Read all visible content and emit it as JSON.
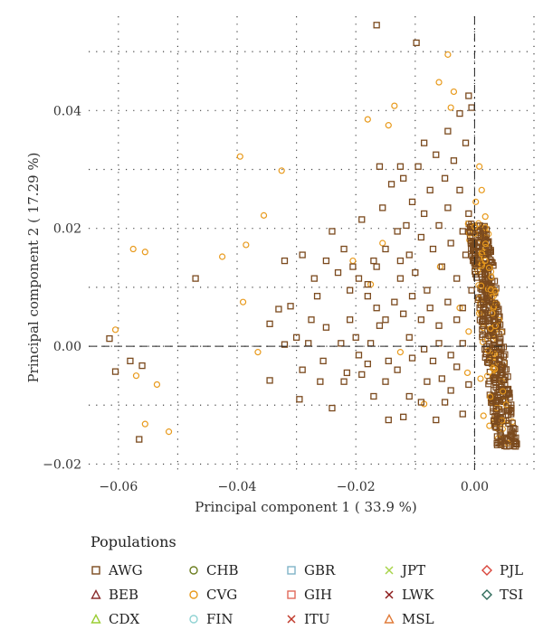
{
  "chart_data": {
    "type": "scatter",
    "xlabel": "Principal component 1 ( 33.9 %)",
    "ylabel": "Principal component 2 ( 17.29 %)",
    "xlim": [
      -0.065,
      0.01
    ],
    "ylim": [
      -0.021,
      0.056
    ],
    "x_ticks": [
      -0.06,
      -0.04,
      -0.02,
      0.0
    ],
    "x_tick_labels": [
      "−0.06",
      "−0.04",
      "−0.02",
      "0.00"
    ],
    "y_ticks": [
      -0.02,
      0.0,
      0.02,
      0.04
    ],
    "y_tick_labels": [
      "−0.02",
      "0.00",
      "0.02",
      "0.04"
    ],
    "grid": "dotted",
    "reference_lines": {
      "x": 0,
      "y": 0
    },
    "legend_title": "Populations",
    "legend": [
      {
        "name": "AWG",
        "shape": "square",
        "color": "#7b4a1e"
      },
      {
        "name": "BEB",
        "shape": "triangle",
        "color": "#8b2e2e"
      },
      {
        "name": "CDX",
        "shape": "triangle",
        "color": "#9acd32"
      },
      {
        "name": "CHB",
        "shape": "circle",
        "color": "#6b7d1f"
      },
      {
        "name": "CVG",
        "shape": "circle",
        "color": "#e89a1c"
      },
      {
        "name": "FIN",
        "shape": "circle",
        "color": "#8fd3d3"
      },
      {
        "name": "GBR",
        "shape": "square",
        "color": "#7fb3c8"
      },
      {
        "name": "GIH",
        "shape": "square",
        "color": "#e06a5a"
      },
      {
        "name": "ITU",
        "shape": "x",
        "color": "#c0392b"
      },
      {
        "name": "JPT",
        "shape": "x",
        "color": "#a8d44a"
      },
      {
        "name": "LWK",
        "shape": "x",
        "color": "#8b1a1a"
      },
      {
        "name": "MSL",
        "shape": "triangle",
        "color": "#e07b39"
      },
      {
        "name": "PJL",
        "shape": "diamond",
        "color": "#d9443a"
      },
      {
        "name": "TSI",
        "shape": "diamond",
        "color": "#2e6b5a"
      }
    ],
    "series": [
      {
        "name": "AWG",
        "points": [
          [
            -0.0615,
            0.0013
          ],
          [
            -0.0605,
            -0.0043
          ],
          [
            -0.058,
            -0.0025
          ],
          [
            -0.056,
            -0.0033
          ],
          [
            -0.0565,
            -0.0158
          ],
          [
            -0.047,
            0.0115
          ],
          [
            -0.0345,
            0.0038
          ],
          [
            -0.033,
            0.0063
          ],
          [
            -0.032,
            0.0003
          ],
          [
            -0.031,
            0.0068
          ],
          [
            -0.03,
            0.0015
          ],
          [
            -0.0295,
            -0.009
          ],
          [
            -0.0345,
            -0.0058
          ],
          [
            -0.029,
            -0.004
          ],
          [
            -0.026,
            -0.006
          ],
          [
            -0.025,
            0.0032
          ],
          [
            -0.028,
            0.0005
          ],
          [
            -0.024,
            -0.0105
          ],
          [
            -0.022,
            -0.006
          ],
          [
            -0.02,
            0.0015
          ],
          [
            -0.019,
            -0.0048
          ],
          [
            -0.018,
            -0.003
          ],
          [
            -0.017,
            -0.0085
          ],
          [
            -0.016,
            0.0035
          ],
          [
            -0.015,
            -0.006
          ],
          [
            -0.0145,
            -0.0125
          ],
          [
            -0.013,
            -0.004
          ],
          [
            -0.012,
            -0.012
          ],
          [
            -0.011,
            -0.0085
          ],
          [
            -0.0105,
            -0.002
          ],
          [
            -0.009,
            -0.0095
          ],
          [
            -0.008,
            -0.006
          ],
          [
            -0.032,
            0.0145
          ],
          [
            -0.029,
            0.0155
          ],
          [
            -0.027,
            0.0115
          ],
          [
            -0.025,
            0.0145
          ],
          [
            -0.024,
            0.0195
          ],
          [
            -0.023,
            0.0125
          ],
          [
            -0.022,
            0.0165
          ],
          [
            -0.021,
            0.0095
          ],
          [
            -0.0195,
            0.0115
          ],
          [
            -0.019,
            0.0215
          ],
          [
            -0.018,
            0.0085
          ],
          [
            -0.017,
            0.0145
          ],
          [
            -0.016,
            0.0305
          ],
          [
            -0.0155,
            0.0235
          ],
          [
            -0.015,
            0.0165
          ],
          [
            -0.014,
            0.0275
          ],
          [
            -0.013,
            0.0195
          ],
          [
            -0.0125,
            0.0115
          ],
          [
            -0.012,
            0.0285
          ],
          [
            -0.0115,
            0.0205
          ],
          [
            -0.011,
            0.0155
          ],
          [
            -0.0105,
            0.0245
          ],
          [
            -0.01,
            0.0125
          ],
          [
            -0.0095,
            0.0305
          ],
          [
            -0.009,
            0.0185
          ],
          [
            -0.0085,
            0.0225
          ],
          [
            -0.008,
            0.0095
          ],
          [
            -0.0075,
            0.0265
          ],
          [
            -0.007,
            0.0165
          ],
          [
            -0.0065,
            0.0325
          ],
          [
            -0.006,
            0.0205
          ],
          [
            -0.0055,
            0.0135
          ],
          [
            -0.005,
            0.0285
          ],
          [
            -0.0045,
            0.0235
          ],
          [
            -0.004,
            0.0175
          ],
          [
            -0.0035,
            0.0315
          ],
          [
            -0.003,
            0.0115
          ],
          [
            -0.0025,
            0.0265
          ],
          [
            -0.002,
            0.0195
          ],
          [
            -0.0015,
            0.0345
          ],
          [
            -0.001,
            0.0225
          ],
          [
            -0.0005,
            0.0405
          ],
          [
            -0.0165,
            0.0545
          ],
          [
            -0.0098,
            0.0515
          ],
          [
            -0.018,
            0.0105
          ],
          [
            -0.0165,
            0.0065
          ],
          [
            -0.015,
            0.0045
          ],
          [
            -0.0135,
            0.0075
          ],
          [
            -0.012,
            0.0055
          ],
          [
            -0.0105,
            0.0085
          ],
          [
            -0.009,
            0.0045
          ],
          [
            -0.0075,
            0.0065
          ],
          [
            -0.006,
            0.0035
          ],
          [
            -0.0045,
            0.0075
          ],
          [
            -0.003,
            0.0045
          ],
          [
            -0.002,
            0.0065
          ],
          [
            -0.007,
            -0.0025
          ],
          [
            -0.0055,
            -0.0055
          ],
          [
            -0.004,
            -0.0075
          ],
          [
            -0.003,
            -0.0035
          ],
          [
            -0.002,
            -0.0115
          ],
          [
            -0.001,
            -0.0065
          ],
          [
            -0.0065,
            -0.0125
          ],
          [
            -0.005,
            -0.0095
          ],
          [
            -0.021,
            0.0045
          ],
          [
            -0.0195,
            -0.0015
          ],
          [
            -0.0225,
            0.0005
          ],
          [
            -0.0175,
            0.0005
          ],
          [
            -0.011,
            0.0015
          ],
          [
            -0.0085,
            -0.0005
          ],
          [
            -0.006,
            0.0005
          ],
          [
            -0.004,
            -0.0015
          ],
          [
            -0.002,
            0.0005
          ],
          [
            -0.0125,
            0.0305
          ],
          [
            -0.0085,
            0.0345
          ],
          [
            -0.0045,
            0.0365
          ],
          [
            -0.0025,
            0.0395
          ],
          [
            -0.001,
            0.0425
          ],
          [
            -0.0015,
            0.0155
          ],
          [
            -0.0005,
            0.0095
          ],
          [
            -0.0125,
            0.0145
          ],
          [
            -0.0165,
            0.0135
          ],
          [
            -0.0205,
            0.0135
          ],
          [
            -0.0265,
            0.0085
          ],
          [
            -0.0275,
            0.0045
          ],
          [
            -0.0215,
            -0.0045
          ],
          [
            -0.0255,
            -0.0025
          ],
          [
            -0.0145,
            -0.0025
          ]
        ]
      },
      {
        "name": "CVG",
        "points": [
          [
            -0.0575,
            0.0165
          ],
          [
            -0.0555,
            0.016
          ],
          [
            -0.0605,
            0.0028
          ],
          [
            -0.057,
            -0.005
          ],
          [
            -0.0535,
            -0.0065
          ],
          [
            -0.0555,
            -0.0132
          ],
          [
            -0.0515,
            -0.0145
          ],
          [
            -0.0395,
            0.0322
          ],
          [
            -0.0425,
            0.0152
          ],
          [
            -0.0385,
            0.0172
          ],
          [
            -0.0355,
            0.0222
          ],
          [
            -0.0325,
            0.0298
          ],
          [
            -0.039,
            0.0075
          ],
          [
            -0.0365,
            -0.001
          ],
          [
            -0.0205,
            0.0145
          ],
          [
            -0.0155,
            0.0175
          ],
          [
            -0.0175,
            0.0105
          ],
          [
            -0.018,
            0.0385
          ],
          [
            -0.0135,
            0.0408
          ],
          [
            -0.0145,
            0.0375
          ],
          [
            -0.0045,
            0.0495
          ],
          [
            -0.006,
            0.0448
          ],
          [
            -0.0035,
            0.0432
          ],
          [
            -0.004,
            0.0405
          ],
          [
            -0.0125,
            -0.001
          ],
          [
            -0.0085,
            -0.0098
          ],
          [
            -0.0025,
            0.0065
          ],
          [
            -0.001,
            0.0025
          ],
          [
            -0.0058,
            0.0135
          ],
          [
            -0.0012,
            -0.0045
          ],
          [
            0.0005,
            0.0175
          ],
          [
            0.001,
            -0.0055
          ],
          [
            0.0045,
            -0.013
          ],
          [
            0.0025,
            -0.0135
          ],
          [
            0.0015,
            -0.0118
          ],
          [
            0.004,
            -0.0105
          ],
          [
            0.0035,
            0.0015
          ],
          [
            0.003,
            -0.0015
          ],
          [
            0.0018,
            0.022
          ],
          [
            0.0012,
            0.0265
          ],
          [
            0.0008,
            0.0305
          ],
          [
            0.0002,
            0.0245
          ],
          [
            0.0035,
            0.0052
          ],
          [
            0.0025,
            0.0095
          ]
        ]
      }
    ]
  }
}
